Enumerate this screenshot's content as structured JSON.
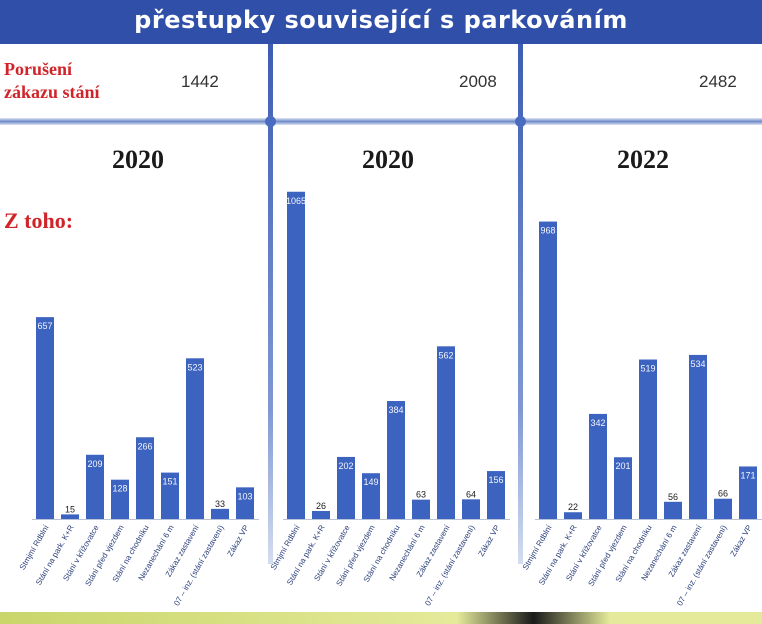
{
  "header": {
    "title": "přestupky související s parkováním",
    "violation_label_line1": "Porušení",
    "violation_label_line2": "zákazu stání",
    "subset_label": "Z toho:"
  },
  "colors": {
    "banner": "#2f4fa8",
    "bar": "#3c63c0",
    "accent_red": "#d0242a"
  },
  "chart_data": [
    {
      "type": "bar",
      "title": "2020",
      "total": "1442",
      "categories": [
        "Stmjmí Rdblní",
        "Stání na park. K+R",
        "Stání v křižovatce",
        "Stání před vjezdem",
        "Stání na chodníku",
        "Nezanechání 6 m",
        "Zákaz zastavení",
        "07 – inz. (stání zastavení)",
        "Zákaz VP"
      ],
      "values": [
        657,
        15,
        209,
        128,
        266,
        151,
        523,
        33,
        103
      ],
      "ylim": [
        0,
        1100
      ]
    },
    {
      "type": "bar",
      "title": "2020",
      "total": "2008",
      "categories": [
        "Stmjmí Rdblní",
        "Stání na park. K+R",
        "Stání v křižovatce",
        "Stání před vjezdem",
        "Stání na chodníku",
        "Nezanechání 6 m",
        "Zákaz zastavení",
        "07 – inz. (stání zastavení)",
        "Zákaz VP"
      ],
      "values": [
        1065,
        26,
        202,
        149,
        384,
        63,
        562,
        64,
        156
      ],
      "ylim": [
        0,
        1100
      ]
    },
    {
      "type": "bar",
      "title": "2022",
      "total": "2482",
      "categories": [
        "Stmjmí Rdblní",
        "Stání na park. K+R",
        "Stání v křižovatce",
        "Stání před vjezdem",
        "Stání na chodníku",
        "Nezanechání 6 m",
        "Zákaz zastavení",
        "07 – inz. (stání zastavení)",
        "Zákaz VP"
      ],
      "values": [
        968,
        22,
        342,
        201,
        519,
        56,
        534,
        66,
        171
      ],
      "ylim": [
        0,
        1100
      ]
    }
  ]
}
